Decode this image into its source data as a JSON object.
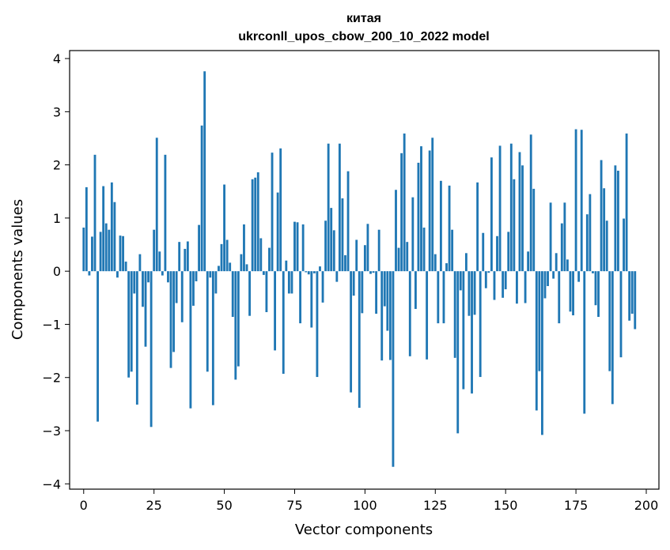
{
  "chart_data": {
    "type": "bar",
    "title": "китая",
    "subtitle": "ukrconll_upos_cbow_200_10_2022 model",
    "xlabel": "Vector components",
    "ylabel": "Components values",
    "xlim": [
      -5,
      204.5
    ],
    "ylim": [
      -4.1,
      4.15
    ],
    "x_ticks": [
      0,
      25,
      50,
      75,
      100,
      125,
      150,
      175,
      200
    ],
    "y_ticks": [
      -4,
      -3,
      -2,
      -1,
      0,
      1,
      2,
      3,
      4
    ],
    "y_tick_labels": [
      "−4",
      "−3",
      "−2",
      "−1",
      "0",
      "1",
      "2",
      "3",
      "4"
    ],
    "bar_color": "#1f77b4",
    "grid": false,
    "values": [
      0.82,
      1.58,
      -0.08,
      0.65,
      2.19,
      -2.83,
      0.74,
      1.6,
      0.9,
      0.78,
      1.67,
      1.3,
      -0.12,
      0.67,
      0.66,
      0.18,
      -2.0,
      -1.89,
      -0.42,
      -2.51,
      0.32,
      -0.67,
      -1.42,
      -0.21,
      -2.93,
      0.78,
      2.51,
      0.37,
      -0.08,
      2.19,
      -0.21,
      -1.82,
      -1.52,
      -0.6,
      0.55,
      -0.96,
      0.42,
      0.56,
      -2.58,
      -0.65,
      -0.19,
      0.87,
      2.74,
      3.76,
      -1.89,
      -0.12,
      -2.52,
      -0.42,
      0.1,
      0.51,
      1.63,
      0.59,
      0.16,
      -0.86,
      -2.04,
      -1.79,
      0.32,
      0.88,
      0.13,
      -0.84,
      1.73,
      1.76,
      1.86,
      0.62,
      -0.07,
      -0.77,
      0.44,
      2.23,
      -1.49,
      1.48,
      2.31,
      -1.93,
      0.2,
      -0.42,
      -0.42,
      0.93,
      0.92,
      -0.98,
      0.88,
      -0.02,
      -0.06,
      -1.06,
      -0.04,
      -1.99,
      0.09,
      -0.59,
      0.95,
      2.4,
      1.19,
      0.77,
      -0.2,
      2.4,
      1.37,
      0.3,
      1.88,
      -2.28,
      -0.46,
      0.59,
      -2.57,
      -0.79,
      0.49,
      0.89,
      -0.05,
      -0.03,
      -0.8,
      0.78,
      -1.68,
      -0.66,
      -1.12,
      -1.67,
      -3.68,
      1.53,
      0.44,
      2.22,
      2.59,
      0.55,
      -1.6,
      1.39,
      -0.71,
      2.04,
      2.35,
      0.82,
      -1.66,
      2.27,
      2.51,
      0.32,
      -0.98,
      1.7,
      -0.98,
      0.15,
      1.61,
      0.78,
      -1.63,
      -3.05,
      -0.36,
      -2.22,
      0.34,
      -0.84,
      -2.3,
      -0.82,
      1.67,
      -1.99,
      0.72,
      -0.32,
      -0.03,
      2.14,
      -0.54,
      0.66,
      2.36,
      -0.5,
      -0.34,
      0.74,
      2.4,
      1.73,
      -0.61,
      2.24,
      1.99,
      -0.6,
      0.37,
      2.57,
      1.55,
      -2.62,
      -1.88,
      -3.08,
      -0.51,
      -0.28,
      1.29,
      -0.14,
      0.34,
      -0.98,
      0.9,
      1.29,
      0.22,
      -0.76,
      -0.83,
      2.67,
      -0.2,
      2.66,
      -2.68,
      1.07,
      1.45,
      -0.04,
      -0.64,
      -0.86,
      2.09,
      1.56,
      0.95,
      -1.88,
      -2.5,
      1.99,
      1.89,
      -1.62,
      0.99,
      2.59,
      -0.93,
      -0.8,
      -1.09
    ]
  }
}
